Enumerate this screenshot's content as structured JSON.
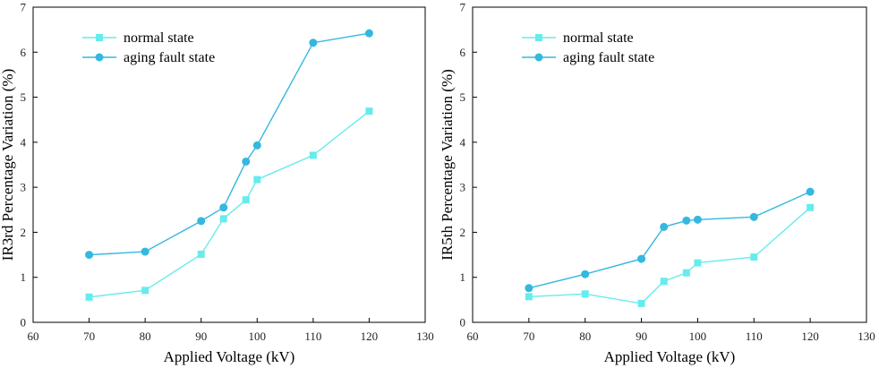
{
  "colors": {
    "normal": "#66ECEC",
    "aging": "#33B8E0"
  },
  "chart_data": [
    {
      "type": "line",
      "title": "",
      "xlabel": "Applied Voltage (kV)",
      "ylabel": "IR3rd Percentage Variation (%)",
      "xlim": [
        60,
        130
      ],
      "ylim": [
        0,
        7
      ],
      "xticks": [
        "60",
        "70",
        "80",
        "90",
        "100",
        "110",
        "120",
        "130"
      ],
      "yticks": [
        "0",
        "1",
        "2",
        "3",
        "4",
        "5",
        "6",
        "7"
      ],
      "legend_position": "top-left",
      "series": [
        {
          "name": "normal state",
          "marker": "square",
          "color": "#66ECEC",
          "x": [
            70,
            80,
            90,
            94,
            98,
            100,
            110,
            120
          ],
          "y": [
            0.56,
            0.71,
            1.51,
            2.3,
            2.72,
            3.17,
            3.71,
            4.69
          ]
        },
        {
          "name": "aging fault state",
          "marker": "circle",
          "color": "#33B8E0",
          "x": [
            70,
            80,
            90,
            94,
            98,
            100,
            110,
            120
          ],
          "y": [
            1.5,
            1.57,
            2.25,
            2.55,
            3.57,
            3.93,
            6.21,
            6.42
          ]
        }
      ]
    },
    {
      "type": "line",
      "title": "",
      "xlabel": "Applied Voltage (kV)",
      "ylabel": "IR5th Percentage Variation (%)",
      "xlim": [
        60,
        130
      ],
      "ylim": [
        0,
        7
      ],
      "xticks": [
        "60",
        "70",
        "80",
        "90",
        "100",
        "110",
        "120",
        "130"
      ],
      "yticks": [
        "0",
        "1",
        "2",
        "3",
        "4",
        "5",
        "6",
        "7"
      ],
      "legend_position": "top-left",
      "series": [
        {
          "name": "normal state",
          "marker": "square",
          "color": "#66ECEC",
          "x": [
            70,
            80,
            90,
            94,
            98,
            100,
            110,
            120
          ],
          "y": [
            0.57,
            0.63,
            0.42,
            0.91,
            1.1,
            1.32,
            1.45,
            2.55
          ]
        },
        {
          "name": "aging fault state",
          "marker": "circle",
          "color": "#33B8E0",
          "x": [
            70,
            80,
            90,
            94,
            98,
            100,
            110,
            120
          ],
          "y": [
            0.76,
            1.07,
            1.41,
            2.12,
            2.26,
            2.28,
            2.34,
            2.9
          ]
        }
      ]
    }
  ]
}
